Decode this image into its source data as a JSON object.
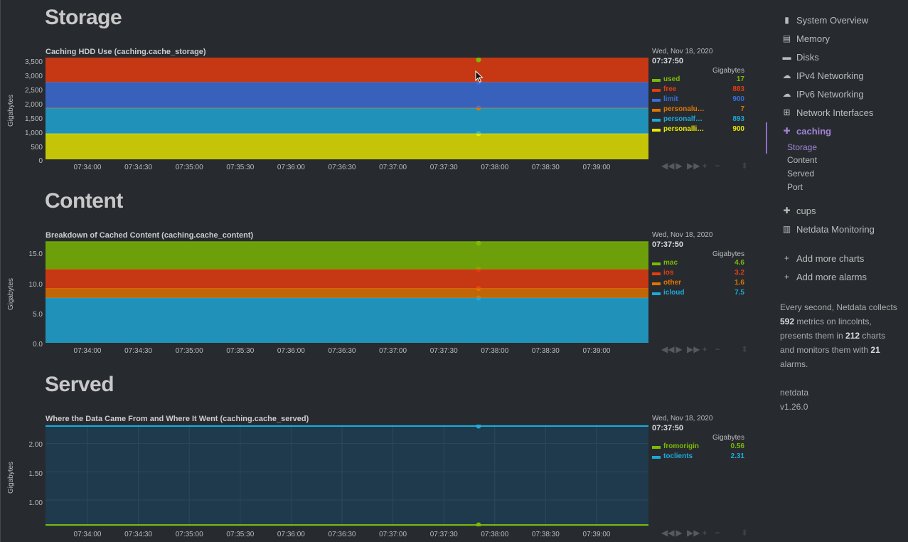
{
  "sections": {
    "storage": {
      "title": "Storage",
      "chart": {
        "title": "Caching HDD Use (caching.cache_storage)",
        "ylabel": "Gigabytes",
        "yticks": [
          "3,500",
          "3,000",
          "2,500",
          "2,000",
          "1,500",
          "1,000",
          "500",
          "0"
        ],
        "xticks": [
          "07:34:00",
          "07:34:30",
          "07:35:00",
          "07:35:30",
          "07:36:00",
          "07:36:30",
          "07:37:00",
          "07:37:30",
          "07:38:00",
          "07:38:30",
          "07:39:00"
        ],
        "legend": {
          "date": "Wed, Nov 18, 2020",
          "time": "07:37:50",
          "unit": "Gigabytes",
          "items": [
            {
              "name": "used",
              "value": "17",
              "color": "#7cba04"
            },
            {
              "name": "free",
              "value": "883",
              "color": "#e93c0e"
            },
            {
              "name": "limit",
              "value": "900",
              "color": "#3a6edb"
            },
            {
              "name": "personalu…",
              "value": "7",
              "color": "#e07500"
            },
            {
              "name": "personalf…",
              "value": "893",
              "color": "#1ea9d8"
            },
            {
              "name": "personalli…",
              "value": "900",
              "color": "#e8e800"
            }
          ]
        }
      }
    },
    "content": {
      "title": "Content",
      "chart": {
        "title": "Breakdown of Cached Content (caching.cache_content)",
        "ylabel": "Gigabytes",
        "yticks": [
          "15.0",
          "10.0",
          "5.0",
          "0.0"
        ],
        "xticks": [
          "07:34:00",
          "07:34:30",
          "07:35:00",
          "07:35:30",
          "07:36:00",
          "07:36:30",
          "07:37:00",
          "07:37:30",
          "07:38:00",
          "07:38:30",
          "07:39:00"
        ],
        "legend": {
          "date": "Wed, Nov 18, 2020",
          "time": "07:37:50",
          "unit": "Gigabytes",
          "items": [
            {
              "name": "mac",
              "value": "4.6",
              "color": "#7cba04"
            },
            {
              "name": "ios",
              "value": "3.2",
              "color": "#e93c0e"
            },
            {
              "name": "other",
              "value": "1.6",
              "color": "#e07500"
            },
            {
              "name": "icloud",
              "value": "7.5",
              "color": "#1ea9d8"
            }
          ]
        }
      }
    },
    "served": {
      "title": "Served",
      "chart": {
        "title": "Where the Data Came From and Where It Went (caching.cache_served)",
        "ylabel": "Gigabytes",
        "yticks": [
          "2.00",
          "1.50",
          "1.00"
        ],
        "xticks": [
          "07:34:00",
          "07:34:30",
          "07:35:00",
          "07:35:30",
          "07:36:00",
          "07:36:30",
          "07:37:00",
          "07:37:30",
          "07:38:00",
          "07:38:30",
          "07:39:00"
        ],
        "legend": {
          "date": "Wed, Nov 18, 2020",
          "time": "07:37:50",
          "unit": "Gigabytes",
          "items": [
            {
              "name": "fromorigin",
              "value": "0.56",
              "color": "#7cba04"
            },
            {
              "name": "toclients",
              "value": "2.31",
              "color": "#1ea9d8"
            }
          ]
        }
      }
    }
  },
  "toolbar": {
    "icons": [
      "rewind-icon",
      "play-icon",
      "fast-forward-icon",
      "zoom-in-icon",
      "zoom-out-icon"
    ],
    "glyphs": [
      "◀◀",
      "▶",
      "▶▶",
      "+",
      "−"
    ]
  },
  "sidebar": {
    "items": [
      {
        "label": "System Overview",
        "icon": "bookmark-icon"
      },
      {
        "label": "Memory",
        "icon": "memory-icon"
      },
      {
        "label": "Disks",
        "icon": "disk-icon"
      },
      {
        "label": "IPv4 Networking",
        "icon": "cloud-icon"
      },
      {
        "label": "IPv6 Networking",
        "icon": "cloud-icon"
      },
      {
        "label": "Network Interfaces",
        "icon": "network-icon"
      },
      {
        "label": "caching",
        "icon": "puzzle-icon"
      }
    ],
    "sub_items": [
      "Storage",
      "Content",
      "Served",
      "Port"
    ],
    "items2": [
      {
        "label": "cups",
        "icon": "puzzle-icon"
      },
      {
        "label": "Netdata Monitoring",
        "icon": "bar-chart-icon"
      }
    ],
    "add_charts": "Add more charts",
    "add_alarms": "Add more alarms",
    "summary": {
      "p1": "Every second, Netdata collects ",
      "metrics": "592",
      "p2": " metrics on lincolnts, presents them in ",
      "charts": "212",
      "p3": " charts and monitors them with ",
      "alarms": "21",
      "p4": " alarms."
    },
    "app_name": "netdata",
    "version": "v1.26.0"
  },
  "chart_data": [
    {
      "type": "area",
      "title": "Caching HDD Use (caching.cache_storage)",
      "ylabel": "Gigabytes",
      "ylim": [
        0,
        3560
      ],
      "x": [
        "07:34:00",
        "07:34:30",
        "07:35:00",
        "07:35:30",
        "07:36:00",
        "07:36:30",
        "07:37:00",
        "07:37:30",
        "07:38:00",
        "07:38:30",
        "07:39:00"
      ],
      "stacked": true,
      "series": [
        {
          "name": "used",
          "value": 17,
          "color": "#7cba04"
        },
        {
          "name": "free",
          "value": 883,
          "color": "#e93c0e"
        },
        {
          "name": "limit",
          "value": 900,
          "color": "#3a6edb"
        },
        {
          "name": "personalu…",
          "value": 7,
          "color": "#e07500"
        },
        {
          "name": "personalf…",
          "value": 893,
          "color": "#1ea9d8"
        },
        {
          "name": "personalli…",
          "value": 900,
          "color": "#e8e800"
        }
      ]
    },
    {
      "type": "area",
      "title": "Breakdown of Cached Content (caching.cache_content)",
      "ylabel": "Gigabytes",
      "ylim": [
        0,
        17
      ],
      "x": [
        "07:34:00",
        "07:34:30",
        "07:35:00",
        "07:35:30",
        "07:36:00",
        "07:36:30",
        "07:37:00",
        "07:37:30",
        "07:38:00",
        "07:38:30",
        "07:39:00"
      ],
      "stacked": true,
      "series": [
        {
          "name": "mac",
          "value": 4.6,
          "color": "#7cba04"
        },
        {
          "name": "ios",
          "value": 3.2,
          "color": "#e93c0e"
        },
        {
          "name": "other",
          "value": 1.6,
          "color": "#e07500"
        },
        {
          "name": "icloud",
          "value": 7.5,
          "color": "#1ea9d8"
        }
      ]
    },
    {
      "type": "line",
      "title": "Where the Data Came From and Where It Went (caching.cache_served)",
      "ylabel": "Gigabytes",
      "ylim": [
        0.56,
        2.31
      ],
      "x": [
        "07:34:00",
        "07:34:30",
        "07:35:00",
        "07:35:30",
        "07:36:00",
        "07:36:30",
        "07:37:00",
        "07:37:30",
        "07:38:00",
        "07:38:30",
        "07:39:00"
      ],
      "series": [
        {
          "name": "fromorigin",
          "value": 0.56,
          "color": "#7cba04"
        },
        {
          "name": "toclients",
          "value": 2.31,
          "color": "#1ea9d8"
        }
      ]
    }
  ]
}
